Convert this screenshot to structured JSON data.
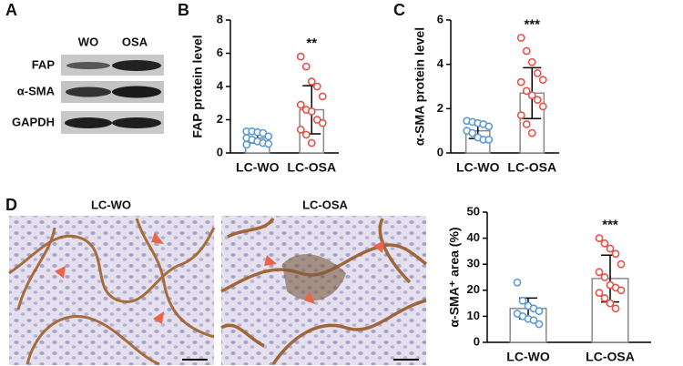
{
  "panel_letters": [
    "A",
    "B",
    "C",
    "D"
  ],
  "blot": {
    "lanes": [
      "WO",
      "OSA"
    ],
    "rows": [
      "FAP",
      "α-SMA",
      "GAPDH"
    ]
  },
  "images": [
    "LC-WO",
    "LC-OSA"
  ],
  "chart_data": [
    {
      "type": "bar",
      "y_label": "FAP protein level",
      "categories": [
        "LC-WO",
        "LC-OSA"
      ],
      "values": [
        0.9,
        2.6
      ],
      "errors": [
        0.3,
        1.45
      ],
      "points": [
        [
          1.3,
          1.3,
          1.25,
          1.2,
          1.0,
          0.9,
          0.8,
          0.7,
          0.6,
          0.55,
          0.5
        ],
        [
          5.8,
          5.2,
          4.3,
          4.0,
          3.4,
          2.9,
          2.6,
          2.5,
          2.0,
          1.8,
          1.4,
          1.1,
          0.6
        ]
      ],
      "colors": [
        "#5b9bd5",
        "#e8524a"
      ],
      "annotations": [
        {
          "text": "**",
          "category": "LC-OSA"
        }
      ],
      "ylim": [
        0,
        8
      ],
      "yticks": [
        0,
        2,
        4,
        6,
        8
      ]
    },
    {
      "type": "bar",
      "y_label": "α-SMA protein level",
      "categories": [
        "LC-WO",
        "LC-OSA"
      ],
      "values": [
        1.0,
        2.7
      ],
      "errors": [
        0.35,
        1.15
      ],
      "points": [
        [
          1.45,
          1.4,
          1.35,
          1.3,
          1.2,
          1.0,
          0.9,
          0.7,
          0.6,
          0.6
        ],
        [
          5.2,
          4.6,
          4.1,
          3.6,
          3.3,
          3.2,
          2.8,
          2.6,
          2.4,
          2.1,
          1.7,
          1.3,
          0.9
        ]
      ],
      "colors": [
        "#5b9bd5",
        "#e8524a"
      ],
      "annotations": [
        {
          "text": "***",
          "category": "LC-OSA"
        }
      ],
      "ylim": [
        0,
        6
      ],
      "yticks": [
        0,
        2,
        4,
        6
      ]
    },
    {
      "type": "bar",
      "y_label": "α-SMA⁺ area (%)",
      "categories": [
        "LC-WO",
        "LC-OSA"
      ],
      "values": [
        13,
        24.5
      ],
      "errors": [
        4,
        9
      ],
      "points": [
        [
          23,
          16,
          14,
          13,
          12,
          11,
          10,
          9,
          8.5,
          7
        ],
        [
          40,
          38,
          36,
          34,
          30,
          27,
          25,
          22,
          21,
          20,
          19,
          17,
          15,
          13
        ]
      ],
      "colors": [
        "#5b9bd5",
        "#e8524a"
      ],
      "annotations": [
        {
          "text": "***",
          "category": "LC-OSA"
        }
      ],
      "ylim": [
        0,
        50
      ],
      "yticks": [
        0,
        10,
        20,
        30,
        40,
        50
      ]
    }
  ]
}
